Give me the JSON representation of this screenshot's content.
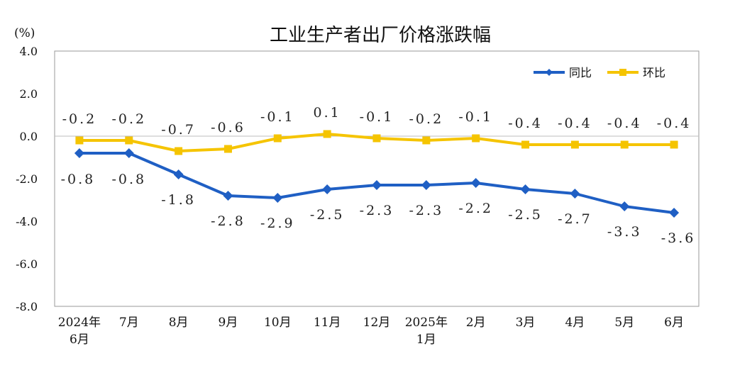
{
  "chart_data": {
    "type": "line",
    "title": "工业生产者出厂价格涨跌幅",
    "unit": "(%)",
    "ylim": [
      -8.0,
      4.0
    ],
    "yticks": [
      "4.0",
      "2.0",
      "0.0",
      "-2.0",
      "-4.0",
      "-6.0",
      "-8.0"
    ],
    "ytick_values": [
      4,
      2,
      0,
      -2,
      -4,
      -6,
      -8
    ],
    "categories": [
      [
        "2024年",
        "6月"
      ],
      [
        "7月"
      ],
      [
        "8月"
      ],
      [
        "9月"
      ],
      [
        "10月"
      ],
      [
        "11月"
      ],
      [
        "12月"
      ],
      [
        "2025年",
        "1月"
      ],
      [
        "2月"
      ],
      [
        "3月"
      ],
      [
        "4月"
      ],
      [
        "5月"
      ],
      [
        "6月"
      ]
    ],
    "grid": false,
    "legend_position": "top-right",
    "series": [
      {
        "name": "同比",
        "color": "#1f5fc4",
        "marker": "diamond",
        "values": [
          -0.8,
          -0.8,
          -1.8,
          -2.8,
          -2.9,
          -2.5,
          -2.3,
          -2.3,
          -2.2,
          -2.5,
          -2.7,
          -3.3,
          -3.6
        ],
        "labels": [
          "-0.8",
          "-0.8",
          "-1.8",
          "-2.8",
          "-2.9",
          "-2.5",
          "-2.3",
          "-2.3",
          "-2.2",
          "-2.5",
          "-2.7",
          "-3.3",
          "-3.6"
        ]
      },
      {
        "name": "环比",
        "color": "#f5c400",
        "marker": "square",
        "values": [
          -0.2,
          -0.2,
          -0.7,
          -0.6,
          -0.1,
          0.1,
          -0.1,
          -0.2,
          -0.1,
          -0.4,
          -0.4,
          -0.4,
          -0.4
        ],
        "labels": [
          "-0.2",
          "-0.2",
          "-0.7",
          "-0.6",
          "-0.1",
          "0.1",
          "-0.1",
          "-0.2",
          "-0.1",
          "-0.4",
          "-0.4",
          "-0.4",
          "-0.4"
        ]
      }
    ]
  }
}
